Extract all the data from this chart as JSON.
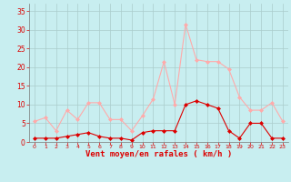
{
  "x": [
    0,
    1,
    2,
    3,
    4,
    5,
    6,
    7,
    8,
    9,
    10,
    11,
    12,
    13,
    14,
    15,
    16,
    17,
    18,
    19,
    20,
    21,
    22,
    23
  ],
  "wind_avg": [
    1,
    1,
    1,
    1.5,
    2,
    2.5,
    1.5,
    1,
    1,
    0.5,
    2.5,
    3,
    3,
    3,
    10,
    11,
    10,
    9,
    3,
    1,
    5,
    5,
    1,
    1
  ],
  "wind_gust": [
    5.5,
    6.5,
    3,
    8.5,
    6,
    10.5,
    10.5,
    6,
    6,
    3,
    7,
    11.5,
    21.5,
    10,
    31.5,
    22,
    21.5,
    21.5,
    19.5,
    12,
    8.5,
    8.5,
    10.5,
    5.5
  ],
  "avg_color": "#dd0000",
  "gust_color": "#ffaaaa",
  "background_color": "#c8eef0",
  "grid_color": "#aacccc",
  "xlabel": "Vent moyen/en rafales ( km/h )",
  "xlabel_color": "#dd0000",
  "tick_color": "#dd0000",
  "yticks": [
    0,
    5,
    10,
    15,
    20,
    25,
    30,
    35
  ],
  "ylim": [
    0,
    37
  ],
  "xlim": [
    -0.5,
    23.5
  ]
}
